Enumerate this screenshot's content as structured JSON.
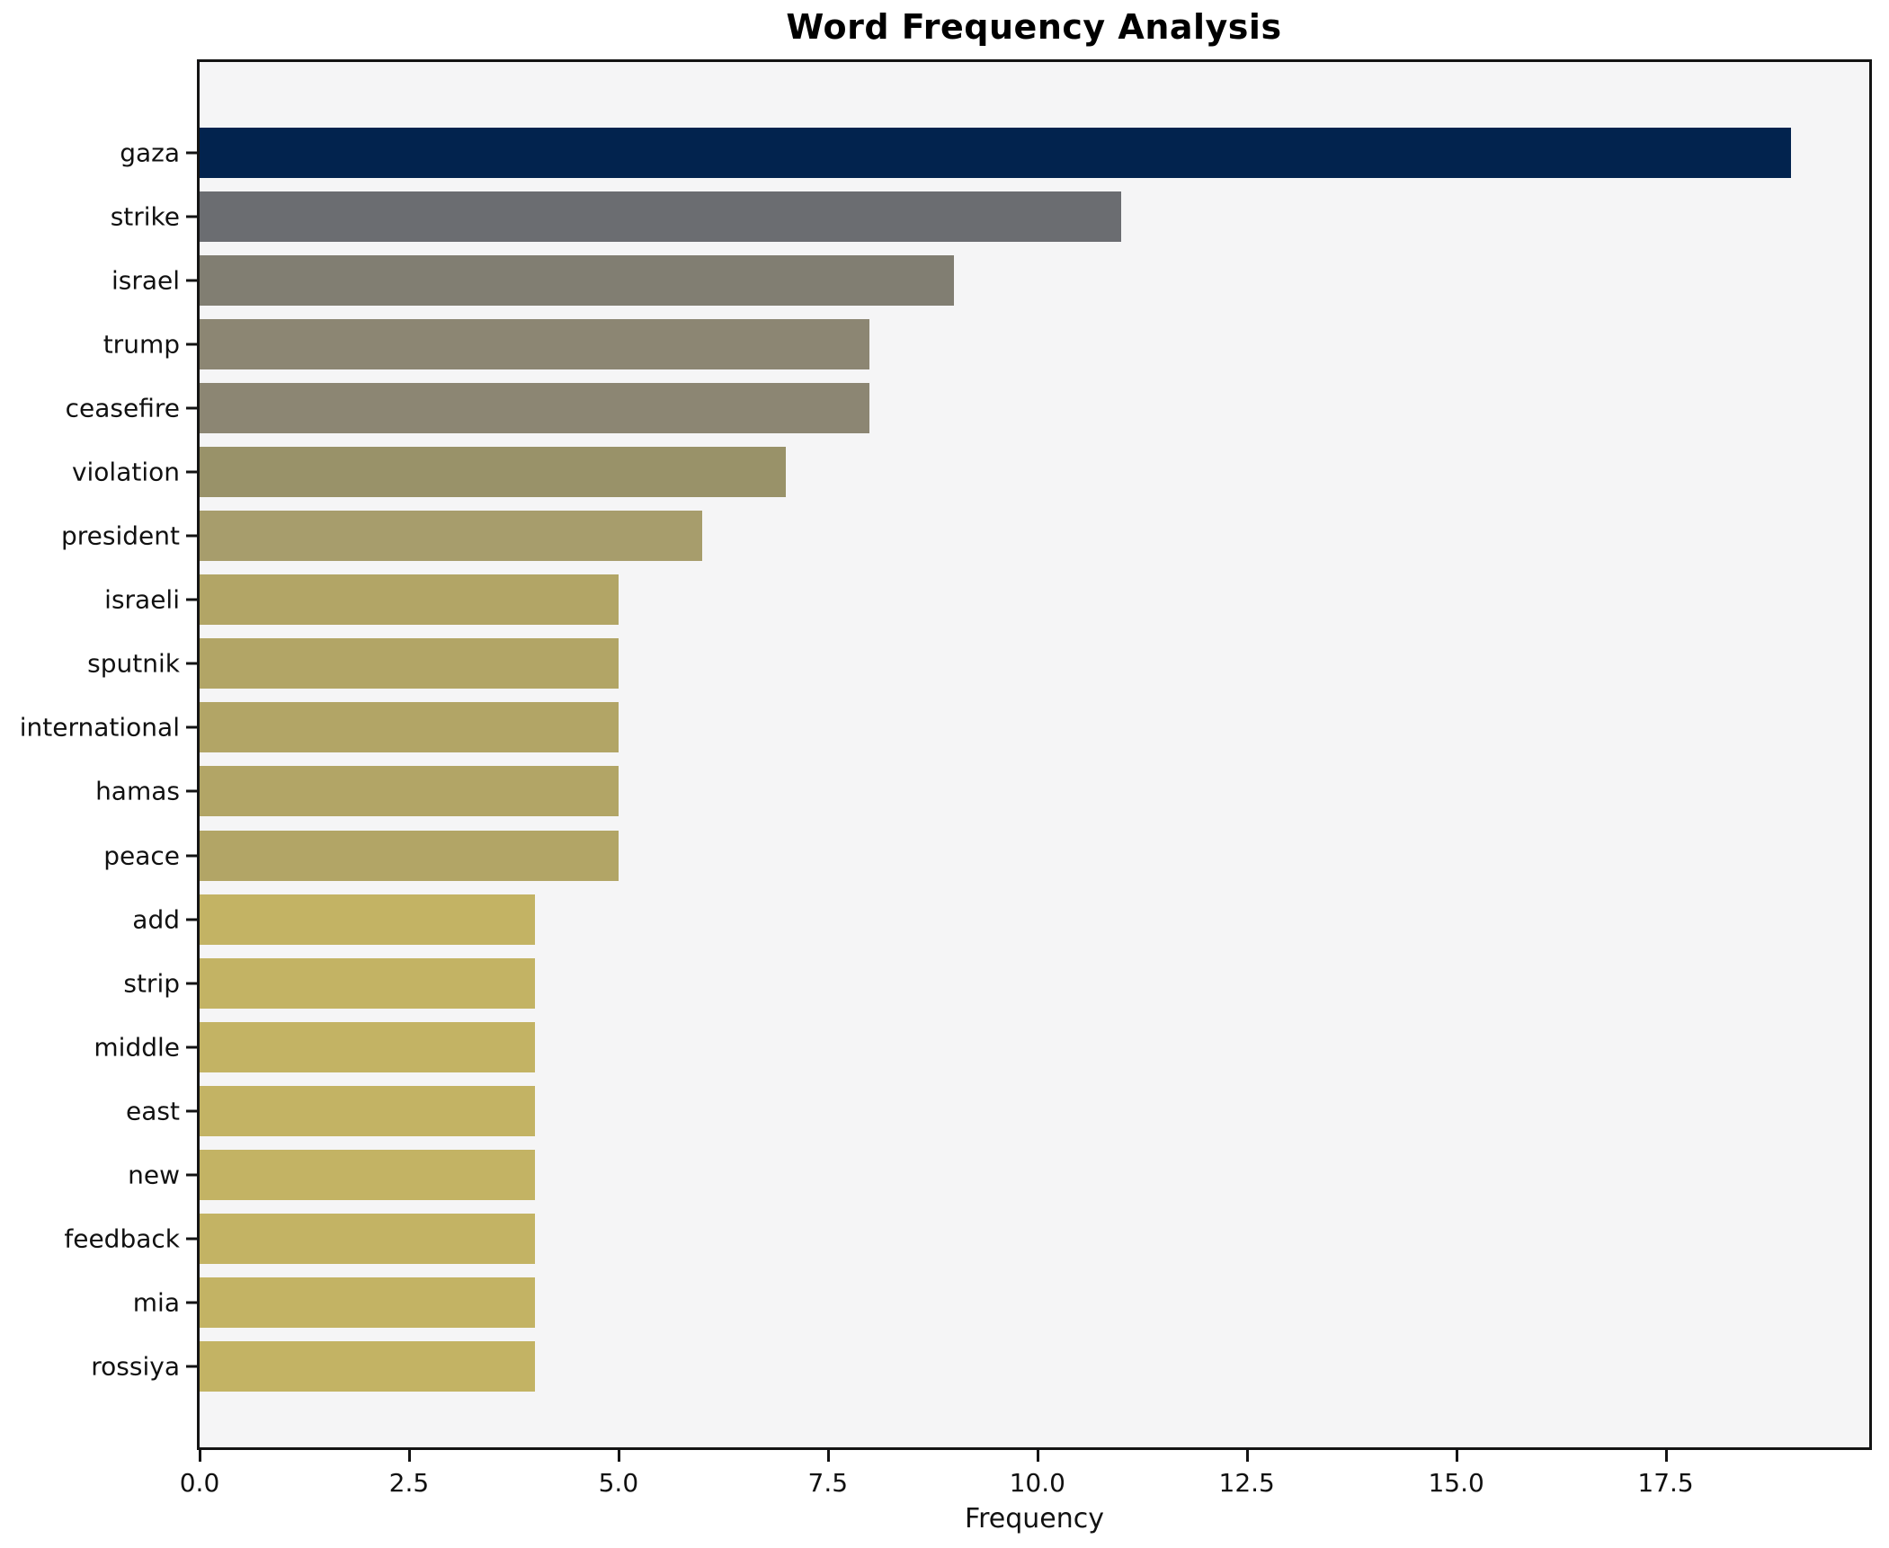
{
  "title": "Word Frequency Analysis",
  "chart_data": {
    "type": "bar",
    "orientation": "horizontal",
    "title": "Word Frequency Analysis",
    "xlabel": "Frequency",
    "ylabel": "",
    "grid": false,
    "legend": false,
    "xlim": [
      0,
      19.93
    ],
    "x_tick_values": [
      0,
      2.5,
      5,
      7.5,
      10,
      12.5,
      15,
      17.5
    ],
    "x_tick_labels": [
      "0.0",
      "2.5",
      "5.0",
      "7.5",
      "10.0",
      "12.5",
      "15.0",
      "17.5"
    ],
    "categories": [
      "gaza",
      "strike",
      "israel",
      "trump",
      "ceasefire",
      "violation",
      "president",
      "israeli",
      "sputnik",
      "international",
      "hamas",
      "peace",
      "add",
      "strip",
      "middle",
      "east",
      "new",
      "feedback",
      "mia",
      "rossiya"
    ],
    "values": [
      19,
      11,
      9,
      8,
      8,
      7,
      6,
      5,
      5,
      5,
      5,
      5,
      4,
      4,
      4,
      4,
      4,
      4,
      4,
      4
    ],
    "bar_colors": [
      "#02234e",
      "#6b6d71",
      "#817e72",
      "#8c8673",
      "#8c8673",
      "#999269",
      "#a79d6c",
      "#b2a566",
      "#b2a566",
      "#b2a566",
      "#b2a566",
      "#b2a566",
      "#c3b364",
      "#c3b364",
      "#c3b364",
      "#c3b364",
      "#c3b364",
      "#c3b364",
      "#c3b364",
      "#c3b364"
    ],
    "colors": {
      "figure_background": "#ffffff",
      "plot_background": "#f5f5f6",
      "spine": "#141414",
      "text": "#111111",
      "max_bar": "#02234e",
      "min_bar": "#c3b364"
    }
  }
}
